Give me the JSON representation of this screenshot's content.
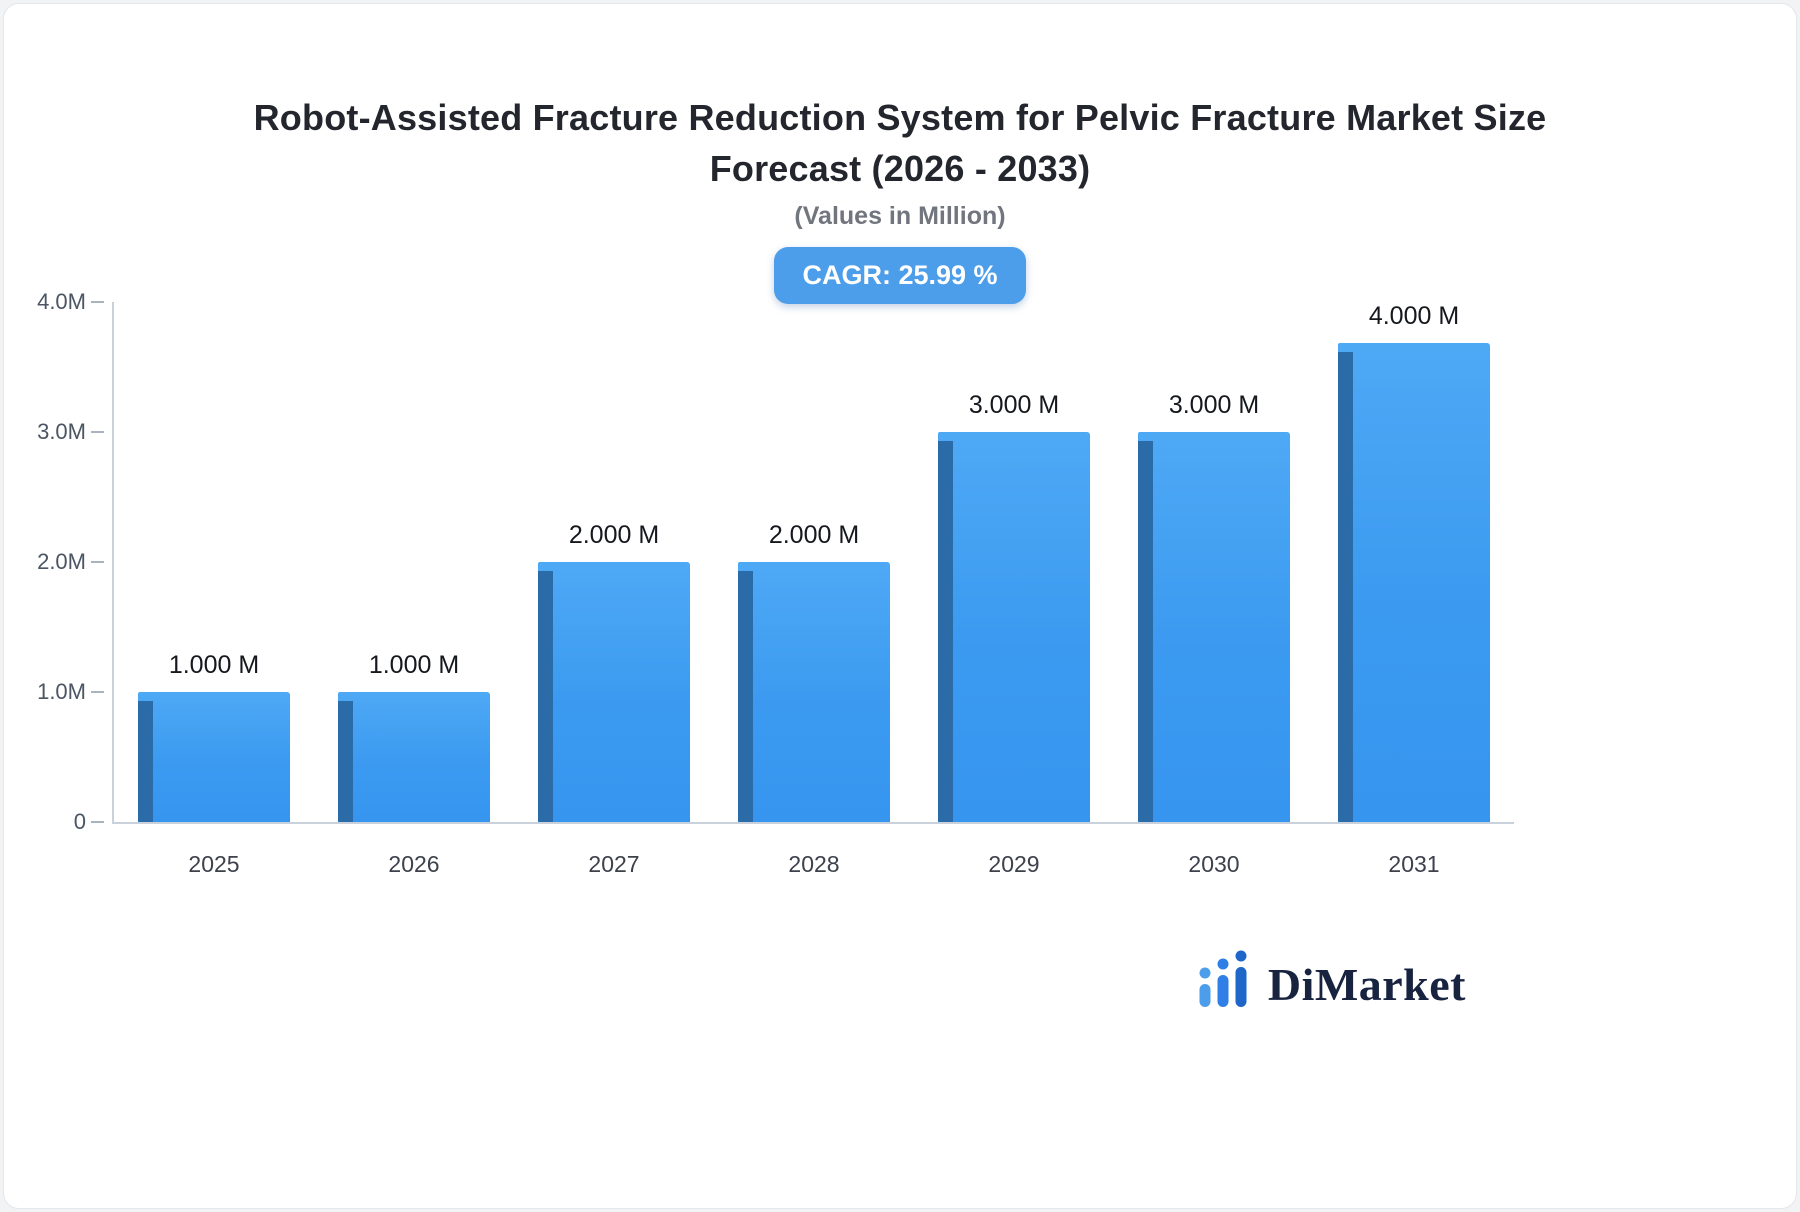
{
  "title": {
    "line1": "Robot-Assisted Fracture Reduction System for Pelvic Fracture Market Size",
    "line2": "Forecast (2026 - 2033)"
  },
  "subtitle": "(Values in Million)",
  "badge": {
    "label": "CAGR: 25.99 %"
  },
  "chart_data": {
    "type": "bar",
    "title": "Robot-Assisted Fracture Reduction System for Pelvic Fracture Market Size Forecast (2026 - 2033)",
    "subtitle": "(Values in Million)",
    "unit": "Million",
    "categories": [
      "2025",
      "2026",
      "2027",
      "2028",
      "2029",
      "2030",
      "2031"
    ],
    "values": [
      1,
      1,
      2,
      2,
      3,
      3,
      4
    ],
    "value_labels": [
      "1.000 M",
      "1.000 M",
      "2.000 M",
      "2.000 M",
      "3.000 M",
      "3.000 M",
      "4.000 M"
    ],
    "ylim": [
      0,
      4
    ],
    "yticks": [
      {
        "value": 0,
        "label": "0"
      },
      {
        "value": 1,
        "label": "1.0M"
      },
      {
        "value": 2,
        "label": "2.0M"
      },
      {
        "value": 3,
        "label": "3.0M"
      },
      {
        "value": 4,
        "label": "4.0M"
      }
    ],
    "grid": false,
    "legend": false,
    "bar_color": "#3d9bf0",
    "bar_side_color": "#2b6ca8",
    "cagr": "25.99 %"
  },
  "logo": {
    "text": "DiMarket"
  }
}
